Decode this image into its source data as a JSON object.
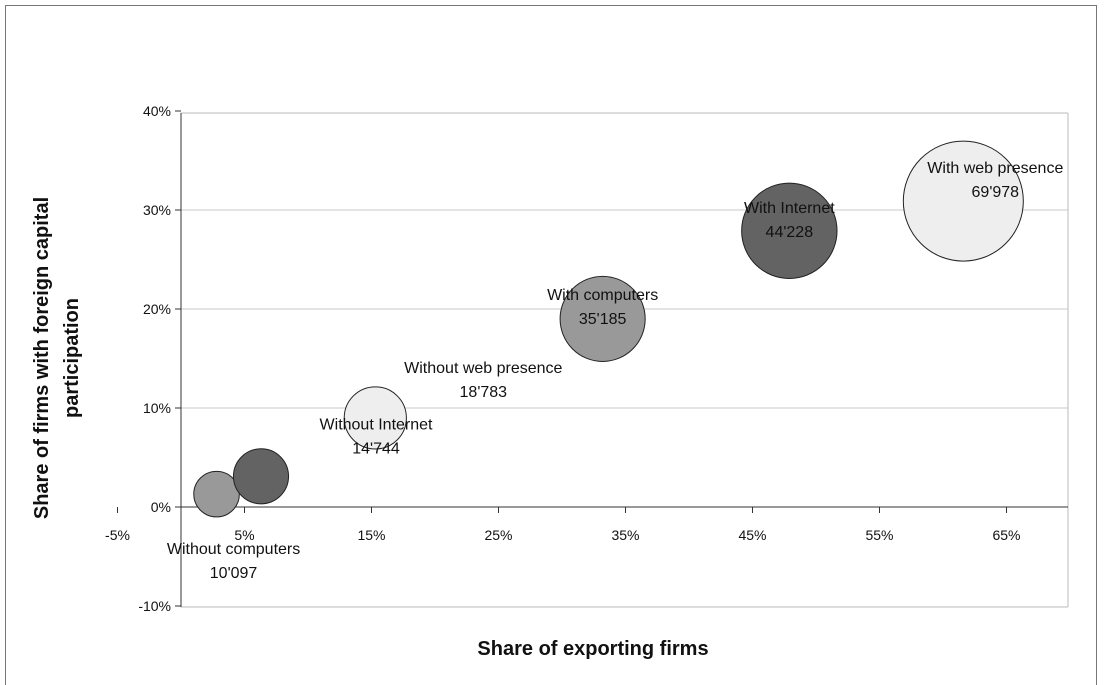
{
  "chart_data": {
    "type": "bubble",
    "xlabel": "Share of exporting firms",
    "ylabel_lines": [
      "Share of firms with foreign capital",
      "participation"
    ],
    "xlim": [
      -5,
      70
    ],
    "ylim": [
      -10,
      40
    ],
    "x_ticks": [
      -5,
      5,
      15,
      25,
      35,
      45,
      55,
      65
    ],
    "x_tick_labels": [
      "-5%",
      "5%",
      "15%",
      "25%",
      "35%",
      "45%",
      "55%",
      "65%"
    ],
    "y_ticks": [
      -10,
      0,
      10,
      20,
      30,
      40
    ],
    "y_tick_labels": [
      "-10%",
      "0%",
      "10%",
      "20%",
      "30%",
      "40%"
    ],
    "grid": "horizontal",
    "points": [
      {
        "name": "Without computers",
        "label": "10'097",
        "x": 2.8,
        "y": 1.3,
        "size": 10097,
        "color": "#999999"
      },
      {
        "name": "Without Internet",
        "label": "14'744",
        "x": 6.3,
        "y": 3.1,
        "size": 14744,
        "color": "#636363"
      },
      {
        "name": "Without web presence",
        "label": "18'783",
        "x": 15.3,
        "y": 9.0,
        "size": 18783,
        "color": "#eeeeee"
      },
      {
        "name": "With computers",
        "label": "35'185",
        "x": 33.2,
        "y": 19.0,
        "size": 35185,
        "color": "#999999"
      },
      {
        "name": "With Internet",
        "label": "44'228",
        "x": 47.9,
        "y": 27.9,
        "size": 44228,
        "color": "#636363"
      },
      {
        "name": "With web presence",
        "label": "69'978",
        "x": 61.6,
        "y": 30.9,
        "size": 69978,
        "color": "#eeeeee"
      }
    ]
  }
}
